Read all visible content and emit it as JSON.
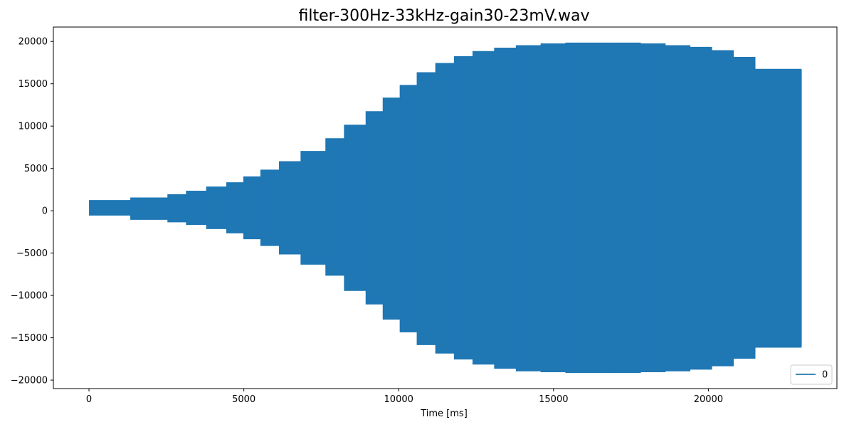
{
  "chart_data": {
    "type": "area",
    "title": "filter-300Hz-33kHz-gain30-23mV.wav",
    "xlabel": "Time [ms]",
    "ylabel": "",
    "xlim": [
      -1150,
      24150
    ],
    "ylim": [
      -21000,
      21700
    ],
    "xticks": [
      0,
      5000,
      10000,
      15000,
      20000
    ],
    "yticks": [
      -20000,
      -15000,
      -10000,
      -5000,
      0,
      5000,
      10000,
      15000,
      20000
    ],
    "grid": false,
    "legend_position": "bottom-right",
    "color": "#1f77b4",
    "series": [
      {
        "name": "0",
        "x_end": 23000,
        "envelope_steps": [
          {
            "x0": 0,
            "x1": 1350,
            "ymax": 1200,
            "ymin": -500
          },
          {
            "x0": 1350,
            "x1": 2550,
            "ymax": 1500,
            "ymin": -1000
          },
          {
            "x0": 2550,
            "x1": 3150,
            "ymax": 1900,
            "ymin": -1300
          },
          {
            "x0": 3150,
            "x1": 3800,
            "ymax": 2300,
            "ymin": -1600
          },
          {
            "x0": 3800,
            "x1": 4450,
            "ymax": 2800,
            "ymin": -2100
          },
          {
            "x0": 4450,
            "x1": 5000,
            "ymax": 3300,
            "ymin": -2600
          },
          {
            "x0": 5000,
            "x1": 5550,
            "ymax": 4000,
            "ymin": -3300
          },
          {
            "x0": 5550,
            "x1": 6150,
            "ymax": 4800,
            "ymin": -4100
          },
          {
            "x0": 6150,
            "x1": 6850,
            "ymax": 5800,
            "ymin": -5100
          },
          {
            "x0": 6850,
            "x1": 7650,
            "ymax": 7000,
            "ymin": -6300
          },
          {
            "x0": 7650,
            "x1": 8250,
            "ymax": 8500,
            "ymin": -7600
          },
          {
            "x0": 8250,
            "x1": 8950,
            "ymax": 10100,
            "ymin": -9400
          },
          {
            "x0": 8950,
            "x1": 9500,
            "ymax": 11700,
            "ymin": -11000
          },
          {
            "x0": 9500,
            "x1": 10050,
            "ymax": 13300,
            "ymin": -12800
          },
          {
            "x0": 10050,
            "x1": 10600,
            "ymax": 14800,
            "ymin": -14300
          },
          {
            "x0": 10600,
            "x1": 11200,
            "ymax": 16300,
            "ymin": -15800
          },
          {
            "x0": 11200,
            "x1": 11800,
            "ymax": 17400,
            "ymin": -16800
          },
          {
            "x0": 11800,
            "x1": 12400,
            "ymax": 18200,
            "ymin": -17500
          },
          {
            "x0": 12400,
            "x1": 13100,
            "ymax": 18800,
            "ymin": -18100
          },
          {
            "x0": 13100,
            "x1": 13800,
            "ymax": 19200,
            "ymin": -18600
          },
          {
            "x0": 13800,
            "x1": 14600,
            "ymax": 19500,
            "ymin": -18900
          },
          {
            "x0": 14600,
            "x1": 15400,
            "ymax": 19700,
            "ymin": -19000
          },
          {
            "x0": 15400,
            "x1": 16200,
            "ymax": 19800,
            "ymin": -19100
          },
          {
            "x0": 16200,
            "x1": 17000,
            "ymax": 19800,
            "ymin": -19100
          },
          {
            "x0": 17000,
            "x1": 17800,
            "ymax": 19800,
            "ymin": -19100
          },
          {
            "x0": 17800,
            "x1": 18600,
            "ymax": 19700,
            "ymin": -19000
          },
          {
            "x0": 18600,
            "x1": 19400,
            "ymax": 19500,
            "ymin": -18900
          },
          {
            "x0": 19400,
            "x1": 20100,
            "ymax": 19300,
            "ymin": -18700
          },
          {
            "x0": 20100,
            "x1": 20800,
            "ymax": 18900,
            "ymin": -18300
          },
          {
            "x0": 20800,
            "x1": 21500,
            "ymax": 18100,
            "ymin": -17400
          },
          {
            "x0": 21500,
            "x1": 23000,
            "ymax": 16700,
            "ymin": -16100
          }
        ]
      }
    ]
  }
}
